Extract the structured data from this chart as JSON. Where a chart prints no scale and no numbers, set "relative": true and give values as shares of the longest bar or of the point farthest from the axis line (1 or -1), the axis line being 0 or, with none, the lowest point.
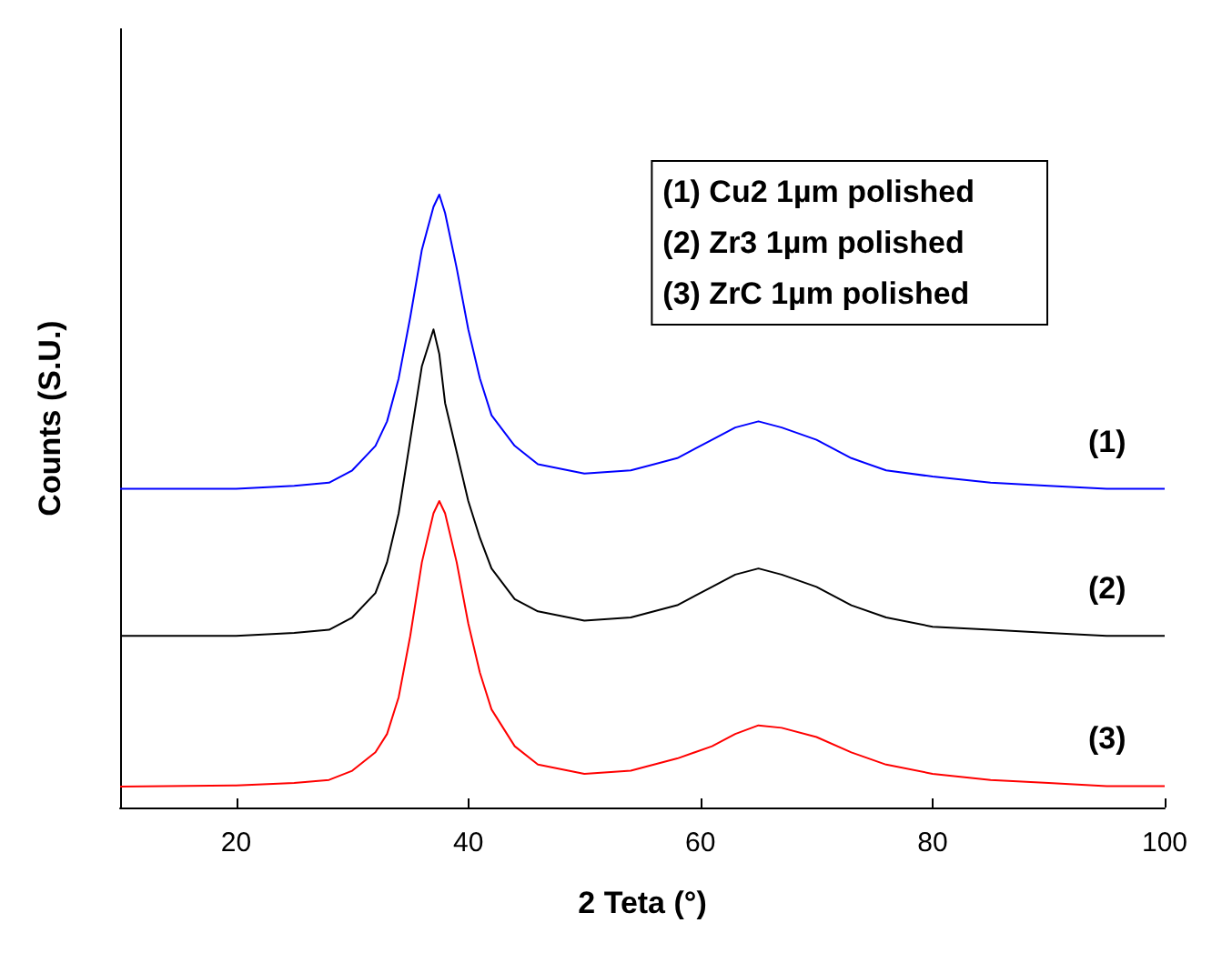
{
  "chart_data": {
    "type": "line",
    "xlabel": "2 Teta (°)",
    "ylabel": "Counts (S.U.)",
    "relative": true,
    "xlim": [
      10,
      100
    ],
    "xticks": [
      20,
      40,
      60,
      80,
      100
    ],
    "grid": false,
    "legend": false,
    "marker": "none",
    "line_style": "solid",
    "x": [
      10,
      20,
      25,
      28,
      30,
      32,
      33,
      34,
      35,
      36,
      37,
      37.5,
      38,
      39,
      40,
      41,
      42,
      44,
      46,
      50,
      54,
      58,
      61,
      63,
      65,
      67,
      70,
      73,
      76,
      80,
      85,
      90,
      95,
      100
    ],
    "series": [
      {
        "name": "(1)",
        "color": "#0000ff",
        "values": [
          0.52,
          0.52,
          0.525,
          0.53,
          0.55,
          0.59,
          0.63,
          0.7,
          0.8,
          0.91,
          0.98,
          1.0,
          0.97,
          0.88,
          0.78,
          0.7,
          0.64,
          0.59,
          0.56,
          0.545,
          0.55,
          0.57,
          0.6,
          0.62,
          0.63,
          0.62,
          0.6,
          0.57,
          0.55,
          0.54,
          0.53,
          0.525,
          0.52,
          0.52
        ]
      },
      {
        "name": "(2)",
        "color": "#000000",
        "values": [
          0.28,
          0.28,
          0.285,
          0.29,
          0.31,
          0.35,
          0.4,
          0.48,
          0.6,
          0.72,
          0.78,
          0.74,
          0.66,
          0.58,
          0.5,
          0.44,
          0.39,
          0.34,
          0.32,
          0.305,
          0.31,
          0.33,
          0.36,
          0.38,
          0.39,
          0.38,
          0.36,
          0.33,
          0.31,
          0.295,
          0.29,
          0.285,
          0.28,
          0.28
        ]
      },
      {
        "name": "(3)",
        "color": "#ff0000",
        "values": [
          0.034,
          0.036,
          0.04,
          0.045,
          0.06,
          0.09,
          0.12,
          0.18,
          0.28,
          0.4,
          0.48,
          0.5,
          0.48,
          0.4,
          0.3,
          0.22,
          0.16,
          0.1,
          0.07,
          0.055,
          0.06,
          0.08,
          0.1,
          0.12,
          0.134,
          0.13,
          0.115,
          0.09,
          0.07,
          0.055,
          0.045,
          0.04,
          0.035,
          0.035
        ]
      }
    ],
    "annotations": [
      "(1) Cu2 1µm polished",
      "(2) Zr3 1µm polished",
      "(3) ZrC 1µm polished"
    ]
  }
}
